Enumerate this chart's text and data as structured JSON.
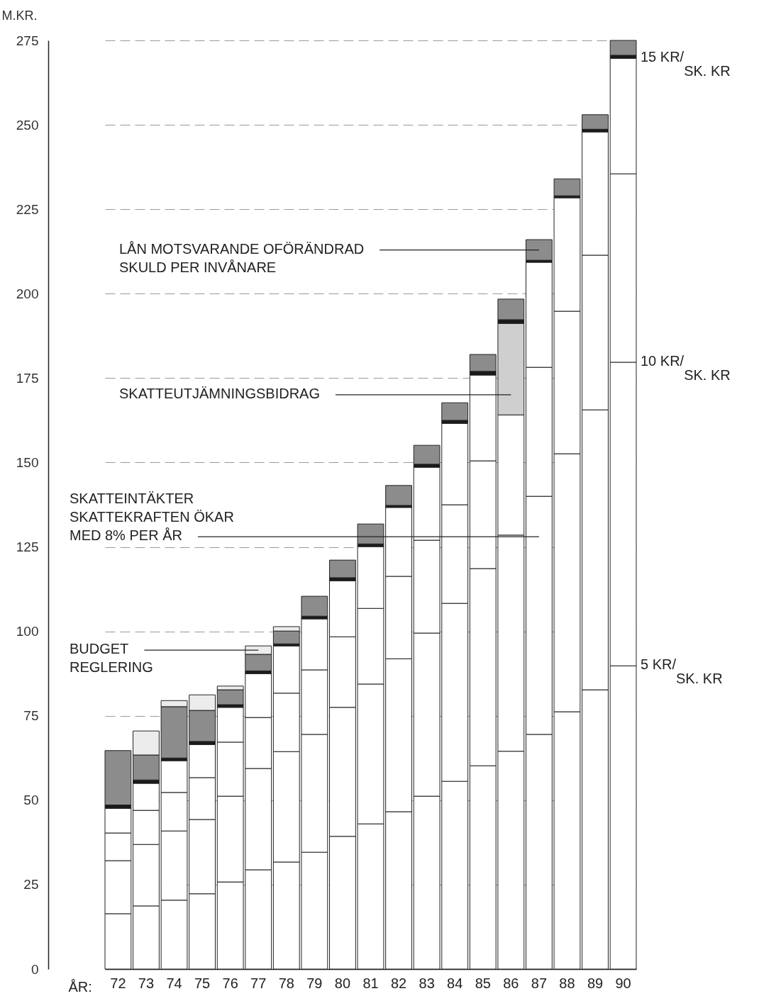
{
  "chart_data": {
    "type": "bar",
    "stacked": true,
    "ylabel": "M.KR.",
    "xlabel": "ÅR:",
    "categories": [
      "72",
      "73",
      "74",
      "75",
      "76",
      "77",
      "78",
      "79",
      "80",
      "81",
      "82",
      "83",
      "84",
      "85",
      "86",
      "87",
      "88",
      "89",
      "90"
    ],
    "ylim": [
      0,
      275
    ],
    "yticks": [
      0,
      25,
      50,
      75,
      100,
      125,
      150,
      175,
      200,
      225,
      250,
      275
    ],
    "grid": "y",
    "series": [
      {
        "color": "#ffffff",
        "values": [
          16.4,
          18.7,
          20.4,
          22.3,
          25.8,
          29.4,
          31.7,
          34.6,
          39.3,
          43.0,
          46.6,
          51.2,
          55.6,
          60.2,
          64.5,
          69.5,
          76.2,
          82.7,
          89.8
        ]
      },
      {
        "name": "SKATTEINTÄKTER\nSKATTEKRAFTEN ÖKAR\nMED 8% PER ÅR",
        "color": "#ffffff",
        "values": [
          15.7,
          18.2,
          20.5,
          22.0,
          25.4,
          30.0,
          32.7,
          34.9,
          38.2,
          41.4,
          45.3,
          48.3,
          52.7,
          58.4,
          64.0,
          70.5,
          76.4,
          82.9,
          89.9
        ]
      },
      {
        "color": "#ffffff",
        "values": [
          8.2,
          10.1,
          11.4,
          12.4,
          16.0,
          15.1,
          17.3,
          19.1,
          20.9,
          22.4,
          24.4,
          27.5,
          29.2,
          31.9,
          null,
          38.2,
          42.2,
          45.8,
          55.8
        ]
      },
      {
        "color": "#ffffff",
        "values": [
          7.3,
          8.0,
          9.4,
          9.8,
          10.3,
          13.0,
          14.0,
          15.1,
          16.6,
          18.3,
          20.4,
          21.6,
          24.1,
          25.4,
          35.6,
          31.1,
          33.6,
          36.5,
          34.2
        ]
      },
      {
        "name": "SKATTEUTJÄMNINGSBIDRAG",
        "color": "#cfcfcf",
        "values": [
          null,
          null,
          null,
          null,
          null,
          null,
          null,
          null,
          null,
          null,
          null,
          null,
          null,
          null,
          27.1,
          null,
          null,
          null,
          null
        ]
      },
      {
        "color": "#1a1a1a",
        "values": [
          1.0,
          1.0,
          0.8,
          0.9,
          0.8,
          0.8,
          0.6,
          0.8,
          0.9,
          0.8,
          0.6,
          0.9,
          0.9,
          1.1,
          1.1,
          0.6,
          0.6,
          0.8,
          0.9
        ]
      },
      {
        "name": "LÅN MOTSVARANDE OFÖRÄNDRAD\nSKULD PER INVÅNARE",
        "color": "#8c8c8c",
        "values": [
          16.1,
          7.4,
          15.2,
          9.2,
          4.4,
          4.9,
          3.8,
          5.9,
          5.2,
          5.9,
          5.9,
          5.6,
          5.2,
          5.0,
          6.1,
          6.1,
          5.0,
          4.3,
          4.4
        ]
      },
      {
        "name": "BUDGET\nREGLERING",
        "color": "#ececec",
        "values": [
          null,
          7.1,
          1.8,
          4.6,
          1.1,
          2.5,
          1.3,
          null,
          null,
          null,
          null,
          null,
          null,
          null,
          null,
          null,
          null,
          null,
          null
        ]
      }
    ],
    "annotations": [
      {
        "text": "15 KR/$_{SK. KR}$",
        "x": "90",
        "y": 270
      },
      {
        "text": "10 KR/$_{SK. KR}$",
        "x": "90",
        "y": 180
      },
      {
        "text": "5 KR/$_{SK. KR}$",
        "x": "90",
        "y": 90
      }
    ]
  }
}
